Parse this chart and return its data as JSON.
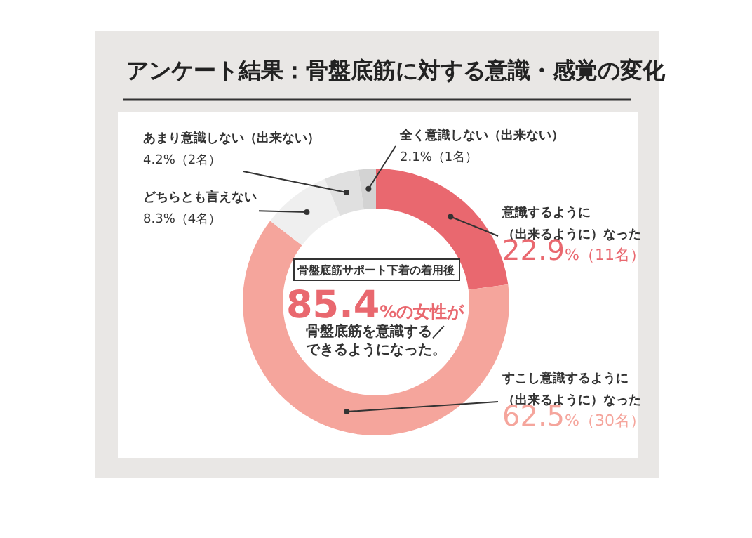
{
  "chart_data": {
    "type": "donut",
    "title": "アンケート結果：骨盤底筋に対する意識・感覚の変化",
    "categories": [
      "意識するように（出来るように）なった",
      "すこし意識するように（出来るように）なった",
      "どちらとも言えない",
      "あまり意識しない（出来ない）",
      "全く意識しない（出来ない）"
    ],
    "values": [
      22.9,
      62.5,
      8.3,
      4.2,
      2.1
    ],
    "value_labels": [
      "22.9%（11名）",
      "62.5%（30名）",
      "8.3%（4名）",
      "4.2%（2名）",
      "2.1%（1名）"
    ],
    "colors": [
      "#e9686f",
      "#f5a59c",
      "#efefef",
      "#e0e0e0",
      "#d3d3d3"
    ],
    "legend": false,
    "annotations": [
      "骨盤底筋サポート下着の着用後",
      "85.4%の女性が",
      "骨盤底筋を意識する／できるようになった。"
    ]
  }
}
